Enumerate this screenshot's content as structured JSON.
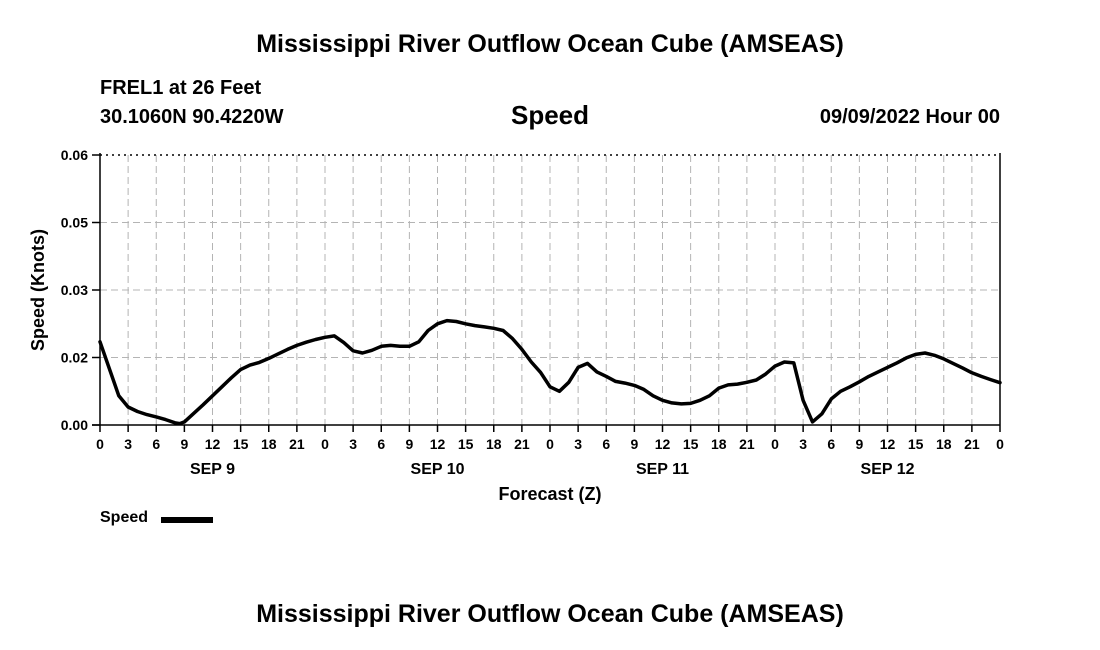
{
  "header": {
    "title": "Mississippi River Outflow Ocean Cube (AMSEAS)",
    "station": "FREL1 at 26 Feet",
    "coords": "30.1060N  90.4220W",
    "plot_title": "Speed",
    "date": "09/09/2022 Hour 00"
  },
  "footer": {
    "title": "Mississippi River Outflow Ocean Cube (AMSEAS)"
  },
  "chart_data": {
    "type": "line",
    "title": "Speed",
    "xlabel": "Forecast (Z)",
    "ylabel": "Speed (Knots)",
    "ylim": [
      0,
      0.06
    ],
    "xlim": [
      0,
      96
    ],
    "x_unit": "hours",
    "yticks": [
      "0.00",
      "0.02",
      "0.03",
      "0.05",
      "0.06"
    ],
    "ytick_values": [
      0.0,
      0.015,
      0.03,
      0.045,
      0.06
    ],
    "xtick_labels": [
      "0",
      "3",
      "6",
      "9",
      "12",
      "15",
      "18",
      "21",
      "0",
      "3",
      "6",
      "9",
      "12",
      "15",
      "18",
      "21",
      "0",
      "3",
      "6",
      "9",
      "12",
      "15",
      "18",
      "21",
      "0",
      "3",
      "6",
      "9",
      "12",
      "15",
      "18",
      "21",
      "0"
    ],
    "day_labels": [
      {
        "label": "SEP 9",
        "x": 12
      },
      {
        "label": "SEP 10",
        "x": 36
      },
      {
        "label": "SEP 11",
        "x": 60
      },
      {
        "label": "SEP 12",
        "x": 84
      }
    ],
    "grid": true,
    "legend": "bottom-left",
    "series": [
      {
        "name": "Speed",
        "color": "#000000",
        "x": [
          0,
          1,
          2,
          3,
          4,
          5,
          6,
          7,
          8,
          8.5,
          9,
          10,
          11,
          12,
          13,
          14,
          15,
          16,
          17,
          18,
          19,
          20,
          21,
          22,
          23,
          24,
          25,
          26,
          27,
          28,
          29,
          30,
          31,
          32,
          33,
          34,
          35,
          36,
          37,
          38,
          39,
          40,
          41,
          42,
          43,
          44,
          45,
          46,
          47,
          48,
          49,
          50,
          51,
          52,
          53,
          54,
          55,
          56,
          57,
          58,
          59,
          60,
          61,
          62,
          63,
          64,
          65,
          66,
          67,
          68,
          69,
          70,
          71,
          72,
          73,
          74,
          75,
          76,
          77,
          78,
          79,
          80,
          81,
          82,
          83,
          84,
          85,
          86,
          87,
          88,
          89,
          90,
          91,
          92,
          93,
          94,
          95,
          96
        ],
        "values": [
          0.0185,
          0.0125,
          0.0065,
          0.004,
          0.003,
          0.0023,
          0.0018,
          0.0012,
          0.0005,
          0.0003,
          0.0007,
          0.0026,
          0.0045,
          0.0065,
          0.0085,
          0.0105,
          0.0123,
          0.0133,
          0.0139,
          0.0148,
          0.0158,
          0.0168,
          0.0177,
          0.0184,
          0.019,
          0.0195,
          0.0198,
          0.0183,
          0.0165,
          0.016,
          0.0166,
          0.0175,
          0.0177,
          0.0175,
          0.0175,
          0.0185,
          0.021,
          0.0225,
          0.0232,
          0.023,
          0.0225,
          0.0221,
          0.0218,
          0.0215,
          0.021,
          0.0192,
          0.0168,
          0.014,
          0.0117,
          0.0085,
          0.0075,
          0.0095,
          0.0128,
          0.0137,
          0.0118,
          0.0108,
          0.0097,
          0.0093,
          0.0088,
          0.0079,
          0.0065,
          0.0055,
          0.0049,
          0.0047,
          0.0048,
          0.0055,
          0.0065,
          0.0082,
          0.0089,
          0.0091,
          0.0095,
          0.01,
          0.0113,
          0.0131,
          0.014,
          0.0138,
          0.0055,
          0.0007,
          0.0025,
          0.0058,
          0.0075,
          0.0085,
          0.0096,
          0.0108,
          0.0118,
          0.0128,
          0.0138,
          0.0149,
          0.0157,
          0.016,
          0.0155,
          0.0147,
          0.0137,
          0.0127,
          0.0116,
          0.0108,
          0.0101,
          0.0094
        ]
      }
    ]
  }
}
